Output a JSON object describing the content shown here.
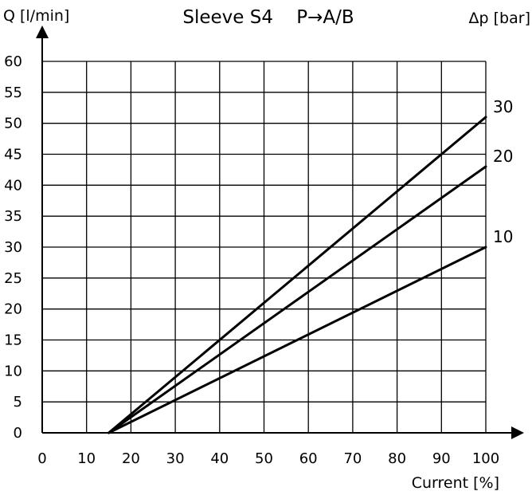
{
  "chart_data": {
    "type": "line",
    "title": "Sleeve S4    P→A/B",
    "xlabel": "Current [%]",
    "ylabel": "Q [l/min]",
    "legend_title": "Δp [bar]",
    "xlim": [
      0,
      100
    ],
    "ylim": [
      0,
      60
    ],
    "x_ticks": [
      "0",
      "10",
      "20",
      "30",
      "40",
      "50",
      "60",
      "70",
      "80",
      "90",
      "100"
    ],
    "y_ticks": [
      "0",
      "5",
      "10",
      "15",
      "20",
      "25",
      "30",
      "35",
      "40",
      "45",
      "50",
      "55",
      "60"
    ],
    "grid": true,
    "series": [
      {
        "name": "30",
        "x": [
          15,
          100
        ],
        "y": [
          0,
          51
        ]
      },
      {
        "name": "20",
        "x": [
          15,
          100
        ],
        "y": [
          0,
          43
        ]
      },
      {
        "name": "10",
        "x": [
          15,
          100
        ],
        "y": [
          0,
          30
        ]
      }
    ],
    "colors": {
      "line": "#000000",
      "grid": "#000000"
    }
  }
}
